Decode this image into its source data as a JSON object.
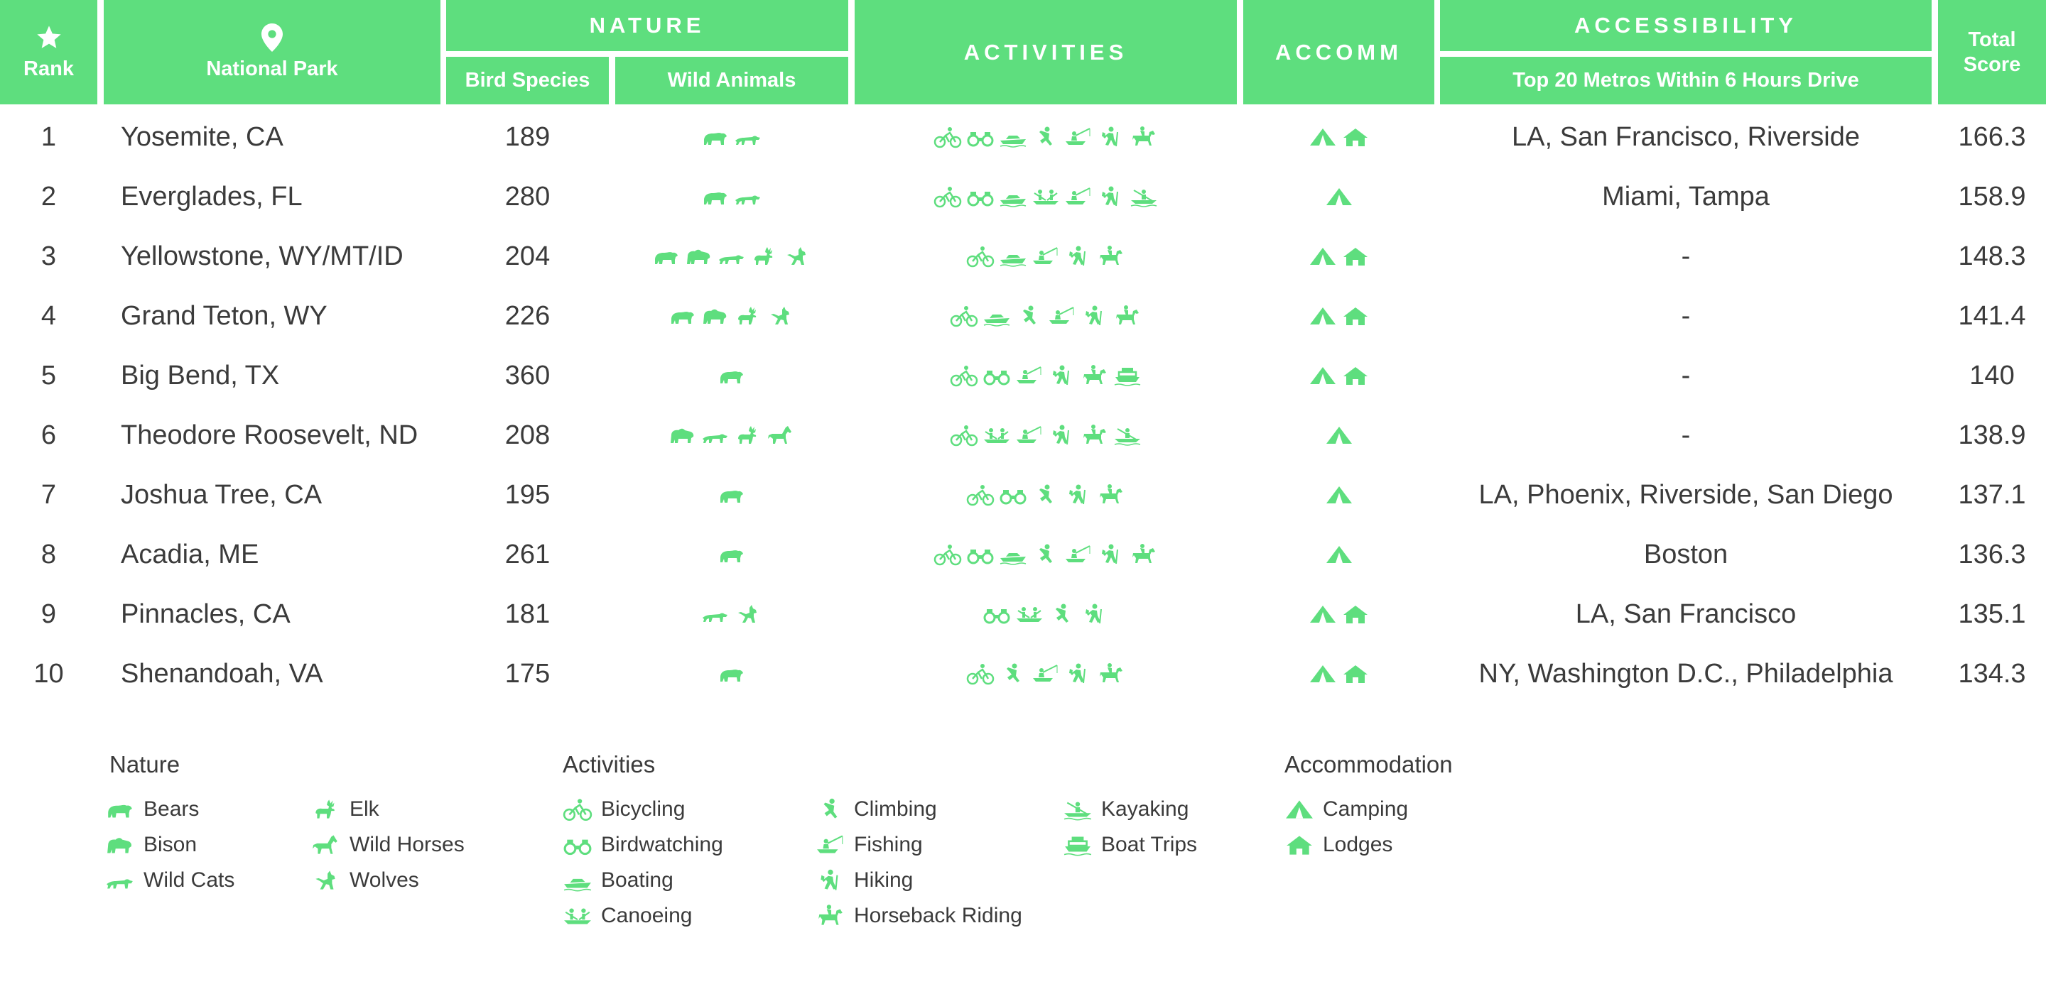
{
  "header": {
    "rank": "Rank",
    "park": "National Park",
    "nature": "NATURE",
    "bird_species": "Bird Species",
    "wild_animals": "Wild Animals",
    "activities": "ACTIVITIES",
    "accomm": "ACCOMM",
    "accessibility": "ACCESSIBILITY",
    "metros": "Top 20 Metros Within 6 Hours Drive",
    "total_score": "Total Score",
    "star_icon": "star-icon",
    "pin_icon": "location-pin-icon"
  },
  "colors": {
    "accent": "#5ede7e",
    "text": "#3b3b3b",
    "header_text": "#ffffff"
  },
  "chart_data": {
    "type": "table",
    "columns": [
      "Rank",
      "National Park",
      "Bird Species",
      "Wild Animals",
      "Activities",
      "Accomm",
      "Top 20 Metros Within 6 Hours Drive",
      "Total Score"
    ],
    "rows": [
      {
        "rank": "1",
        "park": "Yosemite, CA",
        "birds": "189",
        "animals": [
          "bears",
          "wildcats"
        ],
        "activities": [
          "bicycling",
          "birdwatching",
          "boating",
          "climbing",
          "fishing",
          "hiking",
          "horseback"
        ],
        "accomm": [
          "camping",
          "lodges"
        ],
        "metros": "LA, San Francisco, Riverside",
        "score": "166.3"
      },
      {
        "rank": "2",
        "park": "Everglades, FL",
        "birds": "280",
        "animals": [
          "bears",
          "wildcats"
        ],
        "activities": [
          "bicycling",
          "birdwatching",
          "boating",
          "canoeing",
          "fishing",
          "hiking",
          "kayaking"
        ],
        "accomm": [
          "camping"
        ],
        "metros": "Miami, Tampa",
        "score": "158.9"
      },
      {
        "rank": "3",
        "park": "Yellowstone, WY/MT/ID",
        "birds": "204",
        "animals": [
          "bears",
          "bison",
          "wildcats",
          "elk",
          "wolves"
        ],
        "activities": [
          "bicycling",
          "boating",
          "fishing",
          "hiking",
          "horseback"
        ],
        "accomm": [
          "camping",
          "lodges"
        ],
        "metros": "-",
        "score": "148.3"
      },
      {
        "rank": "4",
        "park": "Grand Teton, WY",
        "birds": "226",
        "animals": [
          "bears",
          "bison",
          "elk",
          "wolves"
        ],
        "activities": [
          "bicycling",
          "boating",
          "climbing",
          "fishing",
          "hiking",
          "horseback"
        ],
        "accomm": [
          "camping",
          "lodges"
        ],
        "metros": "-",
        "score": "141.4"
      },
      {
        "rank": "5",
        "park": "Big Bend, TX",
        "birds": "360",
        "animals": [
          "bears"
        ],
        "activities": [
          "bicycling",
          "birdwatching",
          "fishing",
          "hiking",
          "horseback",
          "boattrips"
        ],
        "accomm": [
          "camping",
          "lodges"
        ],
        "metros": "-",
        "score": "140"
      },
      {
        "rank": "6",
        "park": "Theodore Roosevelt, ND",
        "birds": "208",
        "animals": [
          "bison",
          "wildcats",
          "elk",
          "wildhorses"
        ],
        "activities": [
          "bicycling",
          "canoeing",
          "fishing",
          "hiking",
          "horseback",
          "kayaking"
        ],
        "accomm": [
          "camping"
        ],
        "metros": "-",
        "score": "138.9"
      },
      {
        "rank": "7",
        "park": "Joshua Tree, CA",
        "birds": "195",
        "animals": [
          "bears"
        ],
        "activities": [
          "bicycling",
          "birdwatching",
          "climbing",
          "hiking",
          "horseback"
        ],
        "accomm": [
          "camping"
        ],
        "metros": "LA, Phoenix, Riverside, San Diego",
        "score": "137.1"
      },
      {
        "rank": "8",
        "park": "Acadia, ME",
        "birds": "261",
        "animals": [
          "bears"
        ],
        "activities": [
          "bicycling",
          "birdwatching",
          "boating",
          "climbing",
          "fishing",
          "hiking",
          "horseback"
        ],
        "accomm": [
          "camping"
        ],
        "metros": "Boston",
        "score": "136.3"
      },
      {
        "rank": "9",
        "park": "Pinnacles, CA",
        "birds": "181",
        "animals": [
          "wildcats",
          "wolves"
        ],
        "activities": [
          "birdwatching",
          "canoeing",
          "climbing",
          "hiking"
        ],
        "accomm": [
          "camping",
          "lodges"
        ],
        "metros": "LA, San Francisco",
        "score": "135.1"
      },
      {
        "rank": "10",
        "park": "Shenandoah, VA",
        "birds": "175",
        "animals": [
          "bears"
        ],
        "activities": [
          "bicycling",
          "climbing",
          "fishing",
          "hiking",
          "horseback"
        ],
        "accomm": [
          "camping",
          "lodges"
        ],
        "metros": "NY, Washington D.C., Philadelphia",
        "score": "134.3"
      }
    ]
  },
  "legend": {
    "nature_title": "Nature",
    "activities_title": "Activities",
    "accommodation_title": "Accommodation",
    "nature": [
      {
        "icon": "bears",
        "label": "Bears"
      },
      {
        "icon": "bison",
        "label": "Bison"
      },
      {
        "icon": "wildcats",
        "label": "Wild Cats"
      },
      {
        "icon": "elk",
        "label": "Elk"
      },
      {
        "icon": "wildhorses",
        "label": "Wild Horses"
      },
      {
        "icon": "wolves",
        "label": "Wolves"
      }
    ],
    "activities": [
      {
        "icon": "bicycling",
        "label": "Bicycling"
      },
      {
        "icon": "birdwatching",
        "label": "Birdwatching"
      },
      {
        "icon": "boating",
        "label": "Boating"
      },
      {
        "icon": "canoeing",
        "label": "Canoeing"
      },
      {
        "icon": "climbing",
        "label": "Climbing"
      },
      {
        "icon": "fishing",
        "label": "Fishing"
      },
      {
        "icon": "hiking",
        "label": "Hiking"
      },
      {
        "icon": "horseback",
        "label": "Horseback Riding"
      },
      {
        "icon": "kayaking",
        "label": "Kayaking"
      },
      {
        "icon": "boattrips",
        "label": "Boat Trips"
      }
    ],
    "accommodation": [
      {
        "icon": "camping",
        "label": "Camping"
      },
      {
        "icon": "lodges",
        "label": "Lodges"
      }
    ]
  }
}
